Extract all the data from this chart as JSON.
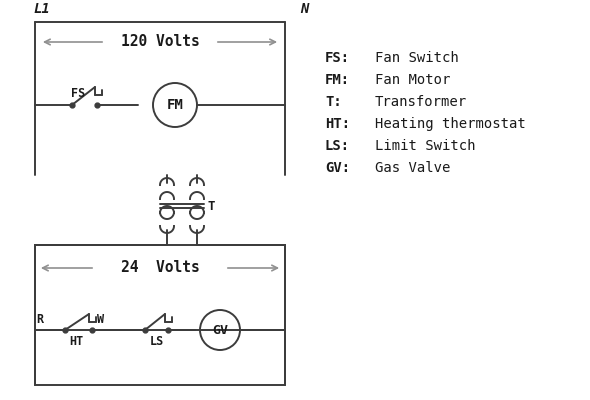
{
  "bg_color": "#ffffff",
  "line_color": "#3c3c3c",
  "arrow_color": "#909090",
  "text_color": "#1a1a1a",
  "legend": [
    [
      "FS:",
      "Fan Switch"
    ],
    [
      "FM:",
      "Fan Motor"
    ],
    [
      "T:",
      "Transformer"
    ],
    [
      "HT:",
      "Heating thermostat"
    ],
    [
      "LS:",
      "Limit Switch"
    ],
    [
      "GV:",
      "Gas Valve"
    ]
  ],
  "L1_label": "L1",
  "N_label": "N",
  "volts120": "120 Volts",
  "volts24": "24  Volts",
  "T_label": "T",
  "FS_label": "FS",
  "FM_label": "FM",
  "R_label": "R",
  "W_label": "W",
  "HT_label": "HT",
  "LS_label": "LS",
  "GV_label": "GV"
}
